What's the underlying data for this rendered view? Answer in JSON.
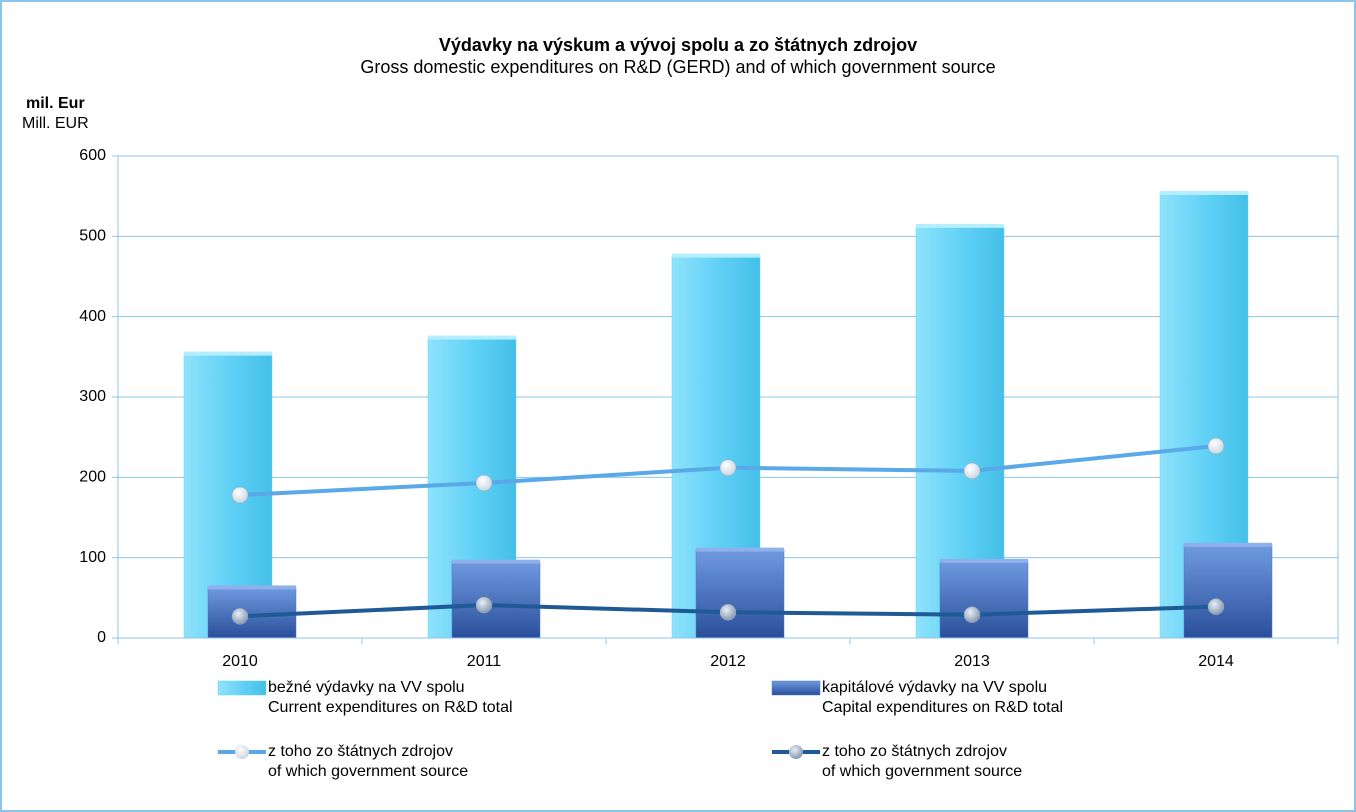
{
  "chart_data": {
    "type": "bar",
    "title": "Výdavky na výskum a vývoj spolu a zo štátnych zdrojov",
    "subtitle": "Gross domestic expenditures on R&D (GERD) and of which government source",
    "ylabel": [
      "mil. Eur",
      "Mill. EUR"
    ],
    "categories": [
      "2010",
      "2011",
      "2012",
      "2013",
      "2014"
    ],
    "series": [
      {
        "name": [
          "bežné výdavky na VV spolu",
          "Current expenditures on R&D total"
        ],
        "type": "bar",
        "color": "#62d2f6",
        "values": [
          354,
          374,
          476,
          513,
          554
        ]
      },
      {
        "name": [
          "kapitálové výdavky na VV spolu",
          "Capital expenditures on R&D total"
        ],
        "type": "bar",
        "color": "#4a78c8",
        "values": [
          63,
          95,
          110,
          96,
          116
        ]
      },
      {
        "name": [
          "z toho zo štátnych zdrojov",
          "of which government source"
        ],
        "type": "line",
        "color": "#5aa8e8",
        "values": [
          178,
          193,
          212,
          208,
          239
        ]
      },
      {
        "name": [
          "z toho zo štátnych zdrojov",
          "of which government source"
        ],
        "type": "line",
        "color": "#1f5a96",
        "values": [
          27,
          41,
          32,
          29,
          39
        ]
      }
    ],
    "ylim": [
      0,
      600
    ],
    "yticks": [
      0,
      100,
      200,
      300,
      400,
      500,
      600
    ],
    "grid": true
  }
}
